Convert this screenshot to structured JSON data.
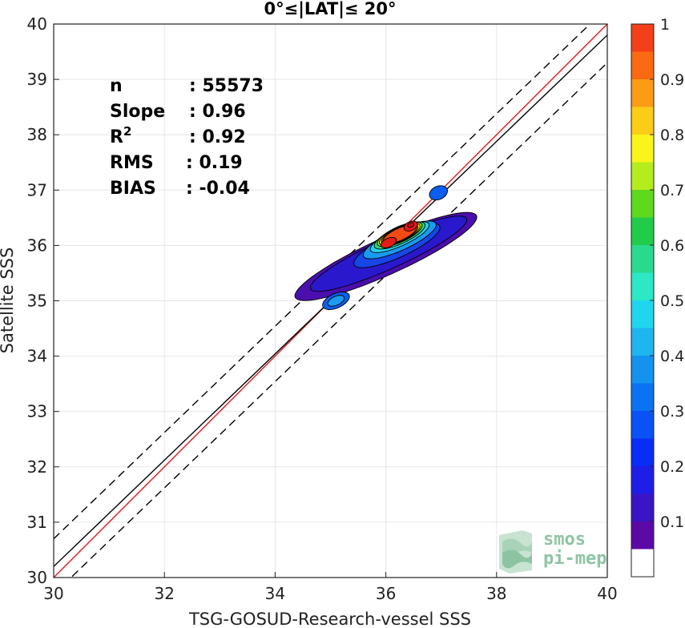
{
  "chart_data": {
    "type": "scatter",
    "title": "0°≤|LAT|≤ 20°",
    "xlabel": "TSG-GOSUD-Research-vessel SSS",
    "ylabel": "Satellite SSS",
    "xlim": [
      30,
      40
    ],
    "ylim": [
      30,
      40
    ],
    "xticks": [
      "30",
      "32",
      "34",
      "36",
      "38",
      "40"
    ],
    "yticks": [
      "30",
      "31",
      "32",
      "33",
      "34",
      "35",
      "36",
      "37",
      "38",
      "39",
      "40"
    ],
    "grid": true,
    "stats": [
      {
        "label": "n",
        "value": ": 55573"
      },
      {
        "label": "Slope",
        "value": ": 0.96"
      },
      {
        "label": "R",
        "sup": "2",
        "value": ": 0.92"
      },
      {
        "label": "RMS",
        "value": ": 0.19"
      },
      {
        "label": "BIAS",
        "value": ": -0.04"
      }
    ],
    "reference_lines": [
      {
        "name": "one-to-one",
        "color": "#e31a1c",
        "style": "solid",
        "slope": 1.0,
        "intercept": 0.0
      },
      {
        "name": "regression",
        "color": "#000000",
        "style": "solid",
        "slope": 0.96,
        "intercept": 1.4
      },
      {
        "name": "upper-bound",
        "color": "#000000",
        "style": "dashed",
        "slope": 0.96,
        "intercept": 1.9
      },
      {
        "name": "lower-bound",
        "color": "#000000",
        "style": "dashed",
        "slope": 0.96,
        "intercept": 0.9
      }
    ],
    "density_contours": {
      "axis_x": [
        0.91,
        0.41
      ],
      "axis_y": [
        -0.41,
        0.91
      ],
      "levels": [
        {
          "level": 0.05,
          "color": "#4b0fad",
          "cx": 36.0,
          "cy": 35.8,
          "a": 1.8,
          "b": 0.33
        },
        {
          "level": 0.1,
          "color": "#2a18cc",
          "cx": 36.05,
          "cy": 35.85,
          "a": 1.55,
          "b": 0.27
        },
        {
          "level": 0.15,
          "color": "#1646e6",
          "cx": 36.2,
          "cy": 36.0,
          "a": 0.85,
          "b": 0.22
        },
        {
          "level": 0.2,
          "color": "#0a5ef0",
          "cx": 35.1,
          "cy": 35.0,
          "a": 0.26,
          "b": 0.13
        },
        {
          "level": 0.2,
          "color": "#0a5ef0",
          "cx": 36.95,
          "cy": 36.95,
          "a": 0.17,
          "b": 0.12
        },
        {
          "level": 0.3,
          "color": "#1a9af0",
          "cx": 35.1,
          "cy": 35.0,
          "a": 0.16,
          "b": 0.08
        },
        {
          "level": 0.3,
          "color": "#1a9af0",
          "cx": 36.25,
          "cy": 36.1,
          "a": 0.72,
          "b": 0.19
        },
        {
          "level": 0.4,
          "color": "#22d3ee",
          "cx": 36.25,
          "cy": 36.15,
          "a": 0.58,
          "b": 0.16
        },
        {
          "level": 0.5,
          "color": "#34d17a",
          "cx": 36.25,
          "cy": 36.18,
          "a": 0.5,
          "b": 0.15
        },
        {
          "level": 0.6,
          "color": "#a4e636",
          "cx": 36.25,
          "cy": 36.2,
          "a": 0.44,
          "b": 0.14
        },
        {
          "level": 0.7,
          "color": "#f7e51a",
          "cx": 36.25,
          "cy": 36.2,
          "a": 0.4,
          "b": 0.13
        },
        {
          "level": 0.8,
          "color": "#fb8c16",
          "cx": 36.25,
          "cy": 36.2,
          "a": 0.36,
          "b": 0.12
        },
        {
          "level": 0.9,
          "color": "#f24a14",
          "cx": 36.25,
          "cy": 36.2,
          "a": 0.33,
          "b": 0.11
        },
        {
          "level": 0.95,
          "color": "#e51b17",
          "cx": 36.05,
          "cy": 36.05,
          "a": 0.15,
          "b": 0.08
        },
        {
          "level": 0.95,
          "color": "#e51b17",
          "cx": 36.45,
          "cy": 36.35,
          "a": 0.13,
          "b": 0.08
        },
        {
          "level": 1.0,
          "color": "#c8101a",
          "cx": 36.45,
          "cy": 36.37,
          "a": 0.06,
          "b": 0.04
        }
      ]
    },
    "colorbar": {
      "ticks": [
        "0.1",
        "0.2",
        "0.3",
        "0.4",
        "0.5",
        "0.6",
        "0.7",
        "0.8",
        "0.9",
        "1"
      ],
      "tick_values": [
        0.1,
        0.2,
        0.3,
        0.4,
        0.5,
        0.6,
        0.7,
        0.8,
        0.9,
        1.0
      ],
      "range": [
        0,
        1
      ],
      "levels": [
        0,
        0.05,
        0.1,
        0.15,
        0.2,
        0.25,
        0.3,
        0.35,
        0.4,
        0.45,
        0.5,
        0.55,
        0.6,
        0.65,
        0.7,
        0.75,
        0.8,
        0.85,
        0.9,
        0.95,
        1.0
      ],
      "colors": [
        "#ffffff",
        "#5b0aa6",
        "#3a15c4",
        "#1e1ee6",
        "#0a2cf7",
        "#0a52f5",
        "#0a73f2",
        "#1493ee",
        "#1fb5ee",
        "#20d6ee",
        "#2ce8c4",
        "#2ad98e",
        "#22cc4a",
        "#5fd91e",
        "#b5ec1e",
        "#f9f51a",
        "#fbcd17",
        "#fb9c14",
        "#f96a12",
        "#f4401a",
        "#e5171e",
        "#c20c1c",
        "#8a0a14"
      ]
    }
  },
  "logo": {
    "line1": "smos",
    "line2": "pi-mep"
  }
}
